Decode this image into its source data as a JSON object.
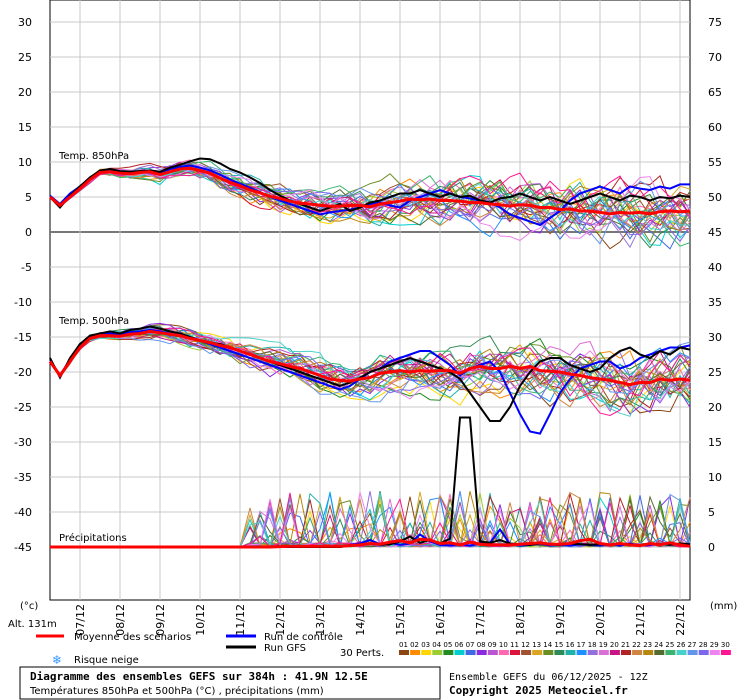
{
  "chart_data": {
    "type": "line",
    "left_axis": {
      "unit": "(°c)",
      "ticks": [
        30,
        25,
        20,
        15,
        10,
        5,
        0,
        -5,
        -10,
        -15,
        -20,
        -25,
        -30,
        -35,
        -40,
        -45
      ]
    },
    "right_axis": {
      "unit": "(mm)",
      "ticks": [
        75,
        70,
        65,
        60,
        55,
        50,
        45,
        40,
        35,
        30,
        25,
        20,
        15,
        10,
        5,
        0
      ]
    },
    "altitude_label": "Alt. 131m",
    "dates": [
      "07/12",
      "08/12",
      "09/12",
      "10/12",
      "11/12",
      "12/12",
      "13/12",
      "14/12",
      "15/12",
      "16/12",
      "17/12",
      "18/12",
      "19/12",
      "20/12",
      "21/12",
      "22/12"
    ],
    "panel_labels": {
      "t850": "Temp. 850hPa",
      "t500": "Temp. 500hPa",
      "precip": "Précipitations"
    },
    "x_hours": [
      0,
      6,
      12,
      18,
      24,
      30,
      36,
      42,
      48,
      54,
      60,
      66,
      72,
      78,
      84,
      90,
      96,
      102,
      108,
      114,
      120,
      126,
      132,
      138,
      144,
      150,
      156,
      162,
      168,
      174,
      180,
      186,
      192,
      198,
      204,
      210,
      216,
      222,
      228,
      234,
      240,
      246,
      252,
      258,
      264,
      270,
      276,
      282,
      288,
      294,
      300,
      306,
      312,
      318,
      324,
      330,
      336,
      342,
      348,
      354,
      360,
      366,
      372,
      378,
      384
    ],
    "series": [
      {
        "name": "Moyenne des scénarios",
        "color": "#ff0000",
        "t850": [
          5.0,
          3.8,
          5.0,
          6.2,
          7.5,
          8.5,
          8.6,
          8.4,
          8.3,
          8.5,
          8.6,
          8.2,
          8.6,
          9.0,
          9.1,
          8.8,
          8.4,
          7.7,
          7.1,
          6.6,
          6.0,
          5.6,
          5.1,
          4.8,
          4.4,
          4.1,
          4.0,
          3.8,
          3.7,
          3.7,
          3.8,
          3.8,
          3.6,
          4.0,
          4.2,
          4.4,
          4.7,
          4.6,
          4.7,
          4.5,
          4.5,
          4.4,
          4.2,
          4.2,
          4.0,
          3.9,
          3.7,
          3.9,
          3.8,
          3.5,
          3.5,
          3.2,
          3.3,
          3.0,
          3.0,
          2.8,
          2.6,
          2.8,
          2.7,
          2.8,
          2.6,
          2.9,
          3.0,
          2.9,
          3.0
        ],
        "t500": [
          -18.5,
          -20.5,
          -18.5,
          -16.5,
          -15.2,
          -14.8,
          -14.8,
          -14.9,
          -14.6,
          -14.5,
          -14.2,
          -14.4,
          -14.6,
          -14.8,
          -15.2,
          -15.5,
          -15.8,
          -16.2,
          -16.5,
          -17.0,
          -17.5,
          -18.0,
          -18.5,
          -18.8,
          -19.2,
          -19.5,
          -20.0,
          -20.5,
          -21.0,
          -21.2,
          -21.3,
          -21.0,
          -20.8,
          -20.2,
          -20.0,
          -19.8,
          -20.0,
          -19.8,
          -19.9,
          -19.8,
          -19.8,
          -20.2,
          -19.5,
          -19.2,
          -19.5,
          -19.5,
          -19.2,
          -19.5,
          -19.2,
          -19.8,
          -19.9,
          -20.0,
          -20.3,
          -20.5,
          -20.8,
          -21.0,
          -21.2,
          -21.5,
          -21.8,
          -21.5,
          -21.5,
          -21.0,
          -21.2,
          -21.0,
          -21.2
        ],
        "precip": [
          0,
          0,
          0,
          0,
          0,
          0,
          0,
          0,
          0,
          0,
          0,
          0,
          0,
          0,
          0,
          0,
          0,
          0,
          0,
          0,
          0,
          0,
          0,
          0.05,
          0.1,
          0.1,
          0.1,
          0.1,
          0.1,
          0.1,
          0.2,
          0.3,
          0.5,
          0.4,
          0.7,
          0.9,
          0.6,
          1.1,
          1.0,
          0.5,
          0.6,
          0.3,
          0.7,
          0.4,
          0.3,
          0.3,
          0.3,
          0.4,
          0.5,
          0.6,
          0.4,
          0.4,
          0.5,
          0.9,
          1.1,
          0.5,
          0.3,
          0.5,
          0.3,
          0.2,
          0.5,
          0.3,
          0.6,
          0.3,
          0.1
        ]
      },
      {
        "name": "Run de contrôle",
        "color": "#0000ff",
        "t850": [
          5.2,
          4.0,
          5.5,
          6.5,
          7.8,
          8.6,
          8.7,
          8.5,
          8.4,
          8.6,
          8.8,
          8.5,
          9.0,
          9.3,
          9.5,
          9.2,
          8.8,
          8.2,
          7.5,
          6.9,
          6.3,
          5.7,
          5.0,
          4.5,
          4.0,
          3.5,
          3.0,
          2.5,
          2.8,
          3.0,
          3.2,
          3.5,
          4.0,
          4.2,
          3.8,
          3.5,
          4.5,
          5.0,
          5.5,
          6.0,
          5.5,
          5.0,
          4.8,
          4.5,
          4.2,
          3.5,
          2.5,
          2.0,
          1.5,
          1.0,
          2.0,
          3.0,
          4.5,
          5.5,
          6.0,
          6.5,
          6.0,
          5.5,
          6.5,
          6.2,
          6.0,
          6.5,
          6.2,
          6.8,
          6.8
        ],
        "t500": [
          -18.2,
          -20.5,
          -18.2,
          -16.0,
          -15.0,
          -14.6,
          -14.5,
          -14.6,
          -14.3,
          -14.2,
          -14.0,
          -14.2,
          -14.5,
          -14.8,
          -15.2,
          -15.5,
          -16.0,
          -16.5,
          -17.0,
          -17.5,
          -18.0,
          -18.5,
          -19.0,
          -19.5,
          -20.0,
          -20.5,
          -21.0,
          -21.5,
          -22.0,
          -22.5,
          -22.0,
          -21.0,
          -20.0,
          -19.5,
          -18.5,
          -18.0,
          -17.5,
          -17.0,
          -17.0,
          -18.0,
          -19.0,
          -20.5,
          -19.5,
          -19.0,
          -18.5,
          -20.0,
          -23.0,
          -26.0,
          -28.5,
          -28.8,
          -26.0,
          -23.0,
          -21.0,
          -19.5,
          -19.0,
          -18.5,
          -18.5,
          -19.5,
          -19.0,
          -18.0,
          -17.5,
          -17.0,
          -16.5,
          -16.5,
          -16.2
        ],
        "precip": [
          0,
          0,
          0,
          0,
          0,
          0,
          0,
          0,
          0,
          0,
          0,
          0,
          0,
          0,
          0,
          0,
          0,
          0,
          0,
          0,
          0,
          0,
          0,
          0,
          0,
          0,
          0,
          0,
          0,
          0,
          0.3,
          0.5,
          1.0,
          0.4,
          0.6,
          0.3,
          0.5,
          1.8,
          0.8,
          0.3,
          0.2,
          0.4,
          0.2,
          0.5,
          0.6,
          2.5,
          0.4,
          0.2,
          0.3,
          0.5,
          0.2,
          0.3,
          0.2,
          0.4,
          0.3,
          0.2,
          0.4,
          0.2,
          0.5,
          0.2,
          0.3,
          0.4,
          0.5,
          0.4,
          0.2
        ]
      },
      {
        "name": "Run GFS",
        "color": "#000000",
        "t850": [
          5.0,
          3.5,
          5.2,
          6.5,
          7.8,
          8.8,
          9.0,
          8.7,
          8.6,
          8.7,
          8.8,
          8.6,
          9.2,
          9.6,
          10.1,
          10.5,
          10.4,
          9.8,
          9.0,
          8.5,
          7.8,
          7.0,
          6.0,
          5.2,
          4.5,
          4.0,
          3.5,
          3.0,
          3.5,
          4.0,
          3.0,
          3.5,
          4.2,
          4.5,
          5.0,
          5.5,
          5.5,
          6.0,
          5.5,
          5.0,
          5.5,
          5.0,
          5.2,
          4.5,
          4.2,
          4.8,
          5.0,
          5.5,
          5.0,
          4.5,
          5.0,
          4.5,
          4.0,
          4.5,
          5.0,
          5.5,
          5.0,
          4.5,
          5.2,
          5.0,
          4.5,
          5.0,
          4.8,
          5.2,
          5.0
        ],
        "t500": [
          -18.0,
          -20.8,
          -18.0,
          -16.0,
          -14.8,
          -14.5,
          -14.2,
          -14.5,
          -14.0,
          -13.8,
          -13.5,
          -13.8,
          -14.2,
          -14.5,
          -15.0,
          -15.5,
          -15.8,
          -16.0,
          -16.5,
          -17.0,
          -17.5,
          -18.0,
          -18.5,
          -19.0,
          -19.5,
          -20.0,
          -20.5,
          -21.0,
          -21.5,
          -22.0,
          -21.5,
          -20.8,
          -20.0,
          -19.5,
          -19.0,
          -18.5,
          -18.0,
          -18.5,
          -19.0,
          -19.5,
          -20.0,
          -21.0,
          -23.0,
          -25.0,
          -27.0,
          -27.0,
          -25.0,
          -22.0,
          -20.0,
          -18.5,
          -18.0,
          -18.0,
          -19.0,
          -19.5,
          -20.0,
          -19.5,
          -18.0,
          -17.0,
          -16.5,
          -17.5,
          -18.0,
          -17.0,
          -17.5,
          -16.5,
          -16.8
        ],
        "precip": [
          0,
          0,
          0,
          0,
          0,
          0,
          0,
          0,
          0,
          0,
          0,
          0,
          0,
          0,
          0,
          0,
          0,
          0,
          0,
          0,
          0,
          0,
          0,
          0,
          0,
          0,
          0,
          0,
          0,
          0,
          0.2,
          0.3,
          0.5,
          0.3,
          0.4,
          0.8,
          1.5,
          0.6,
          1.0,
          0.5,
          1.2,
          18.5,
          18.5,
          0.8,
          0.6,
          1.0,
          0.5,
          0.4,
          0.3,
          0.5,
          0.4,
          0.3,
          0.5,
          0.4,
          0.3,
          0.4,
          0.3,
          0.5,
          0.4,
          0.3,
          0.5,
          0.4,
          0.3,
          0.5,
          0.4
        ]
      }
    ]
  },
  "legend": {
    "mean": "Moyenne des scénarios",
    "control": "Run de contrôle",
    "gfs": "Run GFS",
    "perts": "30 Perts.",
    "snow": "Risque neige",
    "pert_numbers": [
      "01",
      "02",
      "03",
      "04",
      "05",
      "06",
      "07",
      "08",
      "09",
      "10",
      "11",
      "12",
      "13",
      "14",
      "15",
      "16",
      "17",
      "18",
      "19",
      "20",
      "21",
      "22",
      "23",
      "24",
      "25",
      "26",
      "27",
      "28",
      "29",
      "30"
    ]
  },
  "footer": {
    "title": "Diagramme des ensembles GEFS sur 384h : 41.9N 12.5E",
    "subtitle": "Températures 850hPa et 500hPa (°C) , précipitations (mm)",
    "run": "Ensemble GEFS du 06/12/2025 - 12Z",
    "copyright": "Copyright 2025 Meteociel.fr"
  },
  "colors": {
    "perts": [
      "#8b4513",
      "#ff8c00",
      "#ffd700",
      "#9acd32",
      "#228b22",
      "#00ced1",
      "#4169e1",
      "#8a2be2",
      "#ba55d3",
      "#ff69b4",
      "#dc143c",
      "#a0522d",
      "#daa520",
      "#6b8e23",
      "#2e8b57",
      "#20b2aa",
      "#1e90ff",
      "#9370db",
      "#da70d6",
      "#c71585",
      "#b22222",
      "#cd853f",
      "#b8860b",
      "#556b2f",
      "#3cb371",
      "#48d1cc",
      "#6495ed",
      "#7b68ee",
      "#ee82ee",
      "#ff1493"
    ]
  }
}
